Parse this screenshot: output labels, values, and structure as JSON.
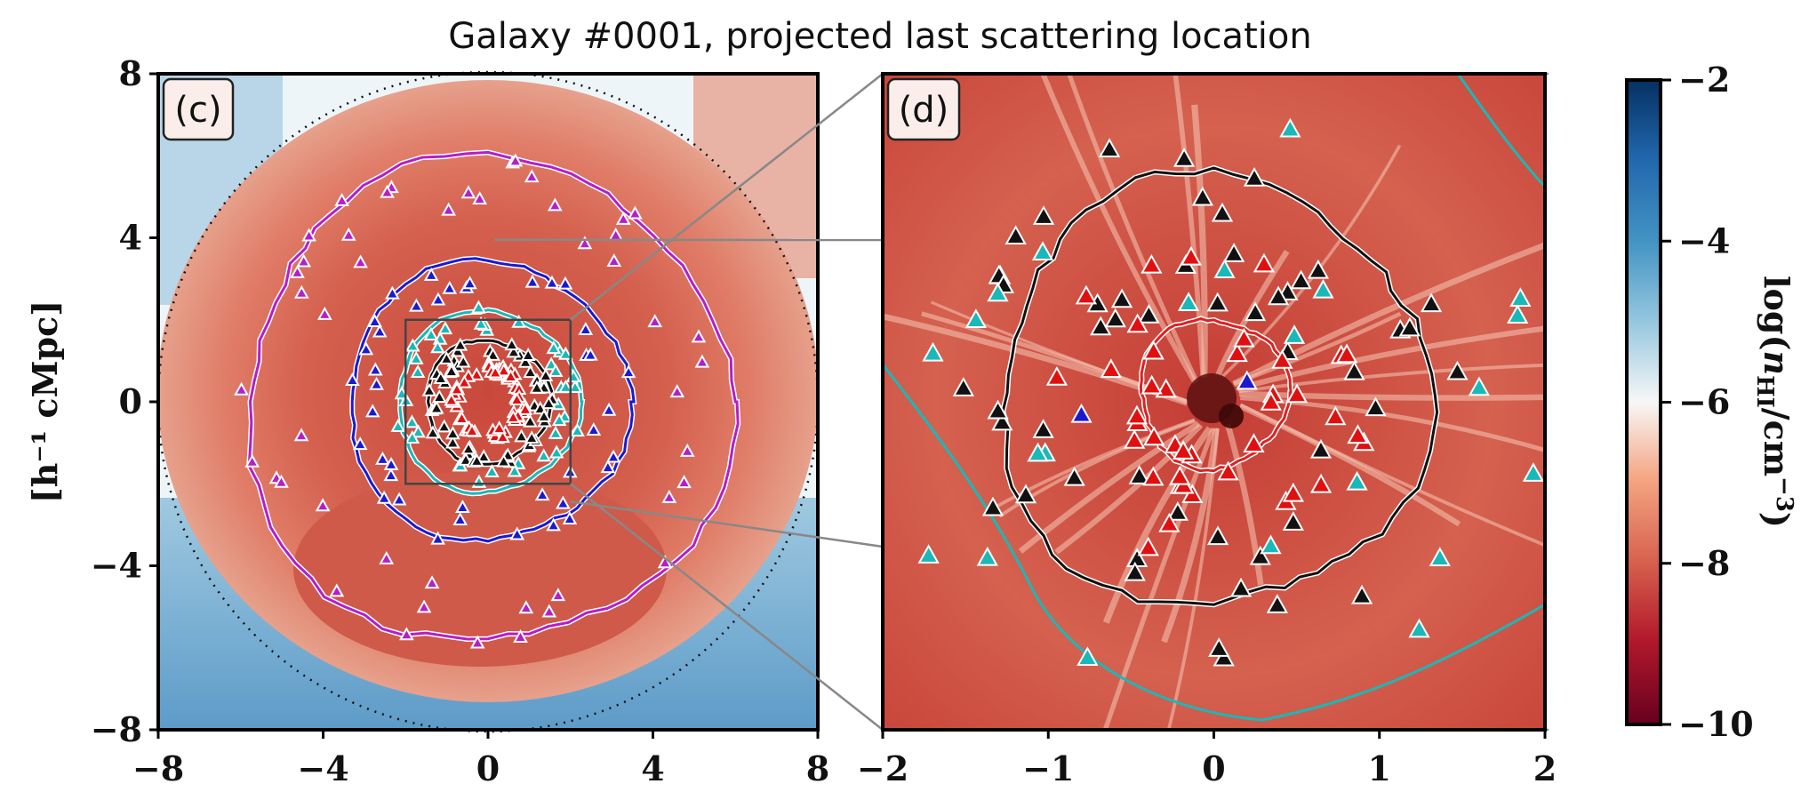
{
  "chart_data": [
    {
      "type": "heatmap",
      "title": "Galaxy #0001, projected last scattering location",
      "panel_label": "(c)",
      "ylabel": "[h⁻¹ cMpc]",
      "xlim": [
        -8,
        8
      ],
      "ylim": [
        -8,
        8
      ],
      "x_ticks": [
        "−8",
        "−4",
        "0",
        "4",
        "8"
      ],
      "y_ticks": [
        "8",
        "4",
        "0",
        "−4",
        "−8"
      ],
      "dotted_circle_radius": 8,
      "inset_box": {
        "x": [
          -2,
          2
        ],
        "y": [
          -2,
          2
        ]
      },
      "contours": [
        {
          "color": "#b51ec8",
          "radius": 5.9
        },
        {
          "color": "#1a1ad0",
          "radius": 3.4
        },
        {
          "color": "#1ab8b8",
          "radius": 2.2
        },
        {
          "color": "#111111",
          "radius": 1.5
        }
      ]
    },
    {
      "type": "heatmap",
      "panel_label": "(d)",
      "xlim": [
        -2,
        2
      ],
      "ylim": [
        -2,
        2
      ],
      "x_ticks": [
        "−2",
        "−1",
        "0",
        "1",
        "2"
      ],
      "contours": [
        {
          "color": "#e02020",
          "radius": 0.45
        },
        {
          "color": "#111111",
          "radius": 1.3
        }
      ]
    }
  ],
  "colorbar": {
    "label": "log(n_HI/cm⁻³)",
    "range": [
      -10,
      -2
    ],
    "ticks": [
      "−2",
      "−4",
      "−6",
      "−8",
      "−10"
    ],
    "colors": [
      "#053061",
      "#2166ac",
      "#4393c3",
      "#92c5de",
      "#f7f7f7",
      "#f4a582",
      "#d6604d",
      "#b2182b",
      "#67001f"
    ]
  }
}
